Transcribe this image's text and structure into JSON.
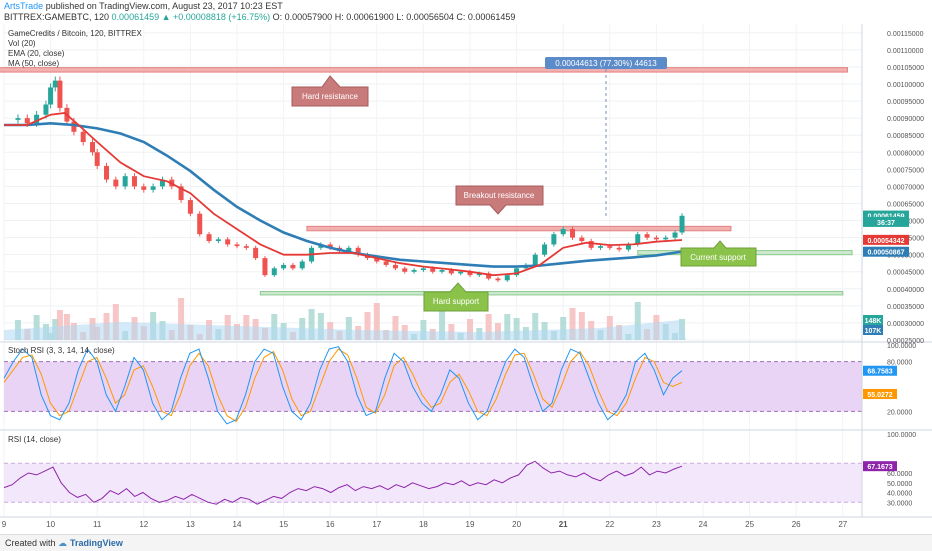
{
  "header": {
    "author": "ArtsTrade",
    "published": "published on TradingView.com, August 23, 2017 10:23 EST",
    "symbol": "BITTREX:GAMEBTC, 120",
    "last": "0.00061459",
    "change": "▲ +0.00008818 (+16.75%)",
    "ohlc": {
      "o": "O: 0.00057900",
      "h": "H: 0.00061900",
      "l": "L: 0.00056504",
      "c": "C: 0.00061459"
    }
  },
  "legend": {
    "line1": "GameCredits / Bitcoin, 120, BITTREX",
    "line2": "Vol (20)",
    "line3": "EMA (20, close)",
    "line4": "MA (50, close)"
  },
  "panes": {
    "stoch_title": "Stoch RSI (3, 3, 14, 14, close)",
    "rsi_title": "RSI (14, close)"
  },
  "annotations": {
    "measure": "0.00044613 (77.30%) 44613",
    "hard_resistance": "Hard resistance",
    "breakout_resistance": "Breakout resistance",
    "current_support": "Current support",
    "hard_support": "Hard support"
  },
  "footer": {
    "created": "Created with",
    "brand": "TradingView"
  },
  "colors": {
    "up": "#26a69a",
    "down": "#ef5350",
    "ema": "#e53935",
    "ma": "#2e7db5",
    "resistance": "#e57373",
    "support": "#81c784",
    "stoch_bg": "#e6ccf5",
    "rsi_bg": "#f2e6fb",
    "rsi_line": "#8e24aa",
    "stoch_k": "#2196f3",
    "stoch_d": "#ff9800",
    "measure": "#5b8bc9"
  },
  "chart_data": {
    "type": "candlestick",
    "price_axis": {
      "ticks": [
        "0.00115000",
        "0.00110000",
        "0.00105000",
        "0.00100000",
        "0.00095000",
        "0.00090000",
        "0.00085000",
        "0.00080000",
        "0.00075000",
        "0.00070000",
        "0.00065000",
        "0.00060000",
        "0.00055000",
        "0.00050000",
        "0.00045000",
        "0.00040000",
        "0.00035000",
        "0.00030000",
        "0.00025000"
      ],
      "range": [
        0.00025,
        0.00117
      ]
    },
    "x_axis": {
      "labels": [
        "9",
        "10",
        "11",
        "12",
        "13",
        "14",
        "15",
        "16",
        "17",
        "18",
        "19",
        "20",
        "21",
        "22",
        "23",
        "24",
        "25",
        "26",
        "27"
      ],
      "bold_labels": [
        "21"
      ]
    },
    "price_labels": [
      {
        "text": "0.00061459",
        "value": 0.00061459,
        "color": "#26a69a"
      },
      {
        "text": "36:37",
        "value": 0.000596,
        "color": "#26a69a"
      },
      {
        "text": "0.00054342",
        "value": 0.00054342,
        "color": "#e53935"
      },
      {
        "text": "0.00050867",
        "value": 0.00050867,
        "color": "#2e7db5"
      }
    ],
    "volume_labels": [
      {
        "text": "148K",
        "color": "#26a69a"
      },
      {
        "text": "107K",
        "color": "#2e7db5"
      }
    ],
    "zones": [
      {
        "name": "hard-resistance",
        "from": 0.001035,
        "to": 0.001048,
        "x0": 1,
        "x1": 27.1
      },
      {
        "name": "breakout-resistance",
        "from": 0.00057,
        "to": 0.000583,
        "x0": 15.5,
        "x1": 24.6
      },
      {
        "name": "current-support",
        "from": 0.0005,
        "to": 0.000512,
        "x0": 22.6,
        "x1": 27.2
      },
      {
        "name": "hard-support",
        "from": 0.000382,
        "to": 0.000392,
        "x0": 14.5,
        "x1": 27.0
      }
    ],
    "close_path": [
      [
        9.0,
        0.000895
      ],
      [
        9.3,
        0.0009
      ],
      [
        9.5,
        0.000885
      ],
      [
        9.7,
        0.00091
      ],
      [
        9.9,
        0.00094
      ],
      [
        10.0,
        0.00099
      ],
      [
        10.1,
        0.00101
      ],
      [
        10.2,
        0.00093
      ],
      [
        10.35,
        0.00089
      ],
      [
        10.5,
        0.00086
      ],
      [
        10.7,
        0.00083
      ],
      [
        10.9,
        0.0008
      ],
      [
        11.0,
        0.00076
      ],
      [
        11.2,
        0.00072
      ],
      [
        11.4,
        0.0007
      ],
      [
        11.6,
        0.00073
      ],
      [
        11.8,
        0.0007
      ],
      [
        12.0,
        0.00069
      ],
      [
        12.2,
        0.0007
      ],
      [
        12.4,
        0.00072
      ],
      [
        12.6,
        0.0007
      ],
      [
        12.8,
        0.00066
      ],
      [
        13.0,
        0.00062
      ],
      [
        13.2,
        0.00056
      ],
      [
        13.4,
        0.00054
      ],
      [
        13.6,
        0.000545
      ],
      [
        13.8,
        0.00053
      ],
      [
        14.0,
        0.000525
      ],
      [
        14.2,
        0.00052
      ],
      [
        14.4,
        0.00049
      ],
      [
        14.6,
        0.00044
      ],
      [
        14.8,
        0.00046
      ],
      [
        15.0,
        0.00047
      ],
      [
        15.2,
        0.00046
      ],
      [
        15.4,
        0.00048
      ],
      [
        15.6,
        0.00052
      ],
      [
        15.8,
        0.00053
      ],
      [
        16.0,
        0.00052
      ],
      [
        16.2,
        0.00051
      ],
      [
        16.4,
        0.00052
      ],
      [
        16.6,
        0.0005
      ],
      [
        16.8,
        0.00049
      ],
      [
        17.0,
        0.00048
      ],
      [
        17.2,
        0.00047
      ],
      [
        17.4,
        0.00046
      ],
      [
        17.6,
        0.00045
      ],
      [
        17.8,
        0.000455
      ],
      [
        18.0,
        0.00046
      ],
      [
        18.2,
        0.00045
      ],
      [
        18.4,
        0.000455
      ],
      [
        18.6,
        0.000445
      ],
      [
        18.8,
        0.00045
      ],
      [
        19.0,
        0.00044
      ],
      [
        19.2,
        0.000445
      ],
      [
        19.4,
        0.00043
      ],
      [
        19.6,
        0.000425
      ],
      [
        19.8,
        0.00044
      ],
      [
        20.0,
        0.00046
      ],
      [
        20.2,
        0.00047
      ],
      [
        20.4,
        0.0005
      ],
      [
        20.6,
        0.00053
      ],
      [
        20.8,
        0.00056
      ],
      [
        21.0,
        0.000575
      ],
      [
        21.2,
        0.00055
      ],
      [
        21.4,
        0.00054
      ],
      [
        21.6,
        0.00052
      ],
      [
        21.8,
        0.000525
      ],
      [
        22.0,
        0.00052
      ],
      [
        22.2,
        0.000515
      ],
      [
        22.4,
        0.00053
      ],
      [
        22.6,
        0.00056
      ],
      [
        22.8,
        0.00055
      ],
      [
        23.0,
        0.000545
      ],
      [
        23.2,
        0.00055
      ],
      [
        23.4,
        0.000565
      ],
      [
        23.55,
        0.000614
      ]
    ],
    "ema_20": [
      [
        9.0,
        0.00088
      ],
      [
        9.5,
        0.00088
      ],
      [
        10.0,
        0.00091
      ],
      [
        10.3,
        0.000915
      ],
      [
        10.6,
        0.00088
      ],
      [
        11.0,
        0.00083
      ],
      [
        11.5,
        0.00077
      ],
      [
        12.0,
        0.00073
      ],
      [
        12.5,
        0.000715
      ],
      [
        13.0,
        0.00068
      ],
      [
        13.5,
        0.00062
      ],
      [
        14.0,
        0.000575
      ],
      [
        14.5,
        0.00053
      ],
      [
        15.0,
        0.0005
      ],
      [
        15.5,
        0.0005
      ],
      [
        16.0,
        0.000505
      ],
      [
        16.5,
        0.000505
      ],
      [
        17.0,
        0.00049
      ],
      [
        17.5,
        0.000475
      ],
      [
        18.0,
        0.000465
      ],
      [
        18.5,
        0.000458
      ],
      [
        19.0,
        0.00045
      ],
      [
        19.5,
        0.00044
      ],
      [
        20.0,
        0.000445
      ],
      [
        20.5,
        0.00047
      ],
      [
        21.0,
        0.00052
      ],
      [
        21.5,
        0.000535
      ],
      [
        22.0,
        0.000528
      ],
      [
        22.5,
        0.00053
      ],
      [
        23.0,
        0.000538
      ],
      [
        23.55,
        0.000543
      ]
    ],
    "ma_50": [
      [
        9.0,
        0.00088
      ],
      [
        9.5,
        0.00088
      ],
      [
        10.0,
        0.000885
      ],
      [
        10.5,
        0.00088
      ],
      [
        11.0,
        0.00087
      ],
      [
        11.5,
        0.000855
      ],
      [
        12.0,
        0.00083
      ],
      [
        12.5,
        0.00079
      ],
      [
        13.0,
        0.000745
      ],
      [
        13.5,
        0.00069
      ],
      [
        14.0,
        0.00064
      ],
      [
        14.5,
        0.0006
      ],
      [
        15.0,
        0.000565
      ],
      [
        15.5,
        0.00054
      ],
      [
        16.0,
        0.00052
      ],
      [
        16.5,
        0.000505
      ],
      [
        17.0,
        0.000495
      ],
      [
        17.5,
        0.000485
      ],
      [
        18.0,
        0.00048
      ],
      [
        18.5,
        0.000475
      ],
      [
        19.0,
        0.00047
      ],
      [
        19.5,
        0.000465
      ],
      [
        20.0,
        0.000465
      ],
      [
        20.5,
        0.000468
      ],
      [
        21.0,
        0.000475
      ],
      [
        21.5,
        0.000482
      ],
      [
        22.0,
        0.000487
      ],
      [
        22.5,
        0.000492
      ],
      [
        23.0,
        0.000498
      ],
      [
        23.55,
        0.000509
      ]
    ],
    "stoch_rsi": {
      "range": [
        0,
        100
      ],
      "ticks": [
        "100.0000",
        "80.0000",
        "20.0000"
      ],
      "band": [
        20,
        80
      ],
      "k_label": "68.7583",
      "d_label": "55.0272",
      "k": [
        60,
        80,
        95,
        85,
        40,
        15,
        10,
        30,
        70,
        95,
        80,
        40,
        20,
        50,
        85,
        70,
        30,
        10,
        20,
        60,
        90,
        95,
        60,
        20,
        5,
        10,
        40,
        80,
        95,
        90,
        50,
        20,
        10,
        30,
        70,
        95,
        98,
        80,
        40,
        15,
        20,
        60,
        90,
        80,
        50,
        30,
        20,
        40,
        70,
        60,
        30,
        10,
        20,
        50,
        80,
        95,
        85,
        50,
        20,
        30,
        70,
        95,
        90,
        60,
        30,
        10,
        20,
        40,
        80,
        90,
        70,
        40,
        60,
        69
      ],
      "d": [
        55,
        70,
        85,
        88,
        65,
        30,
        15,
        20,
        50,
        80,
        85,
        60,
        30,
        40,
        70,
        75,
        50,
        20,
        15,
        40,
        75,
        90,
        75,
        40,
        15,
        8,
        25,
        60,
        85,
        92,
        70,
        35,
        15,
        20,
        50,
        80,
        95,
        88,
        60,
        25,
        18,
        40,
        75,
        85,
        65,
        40,
        25,
        30,
        55,
        65,
        45,
        20,
        15,
        35,
        65,
        88,
        90,
        65,
        35,
        25,
        50,
        80,
        92,
        75,
        45,
        20,
        15,
        30,
        60,
        85,
        80,
        55,
        50,
        55
      ]
    },
    "rsi_14": {
      "range": [
        20,
        100
      ],
      "ticks": [
        "100.0000",
        "60.0000",
        "50.0000",
        "40.0000",
        "30.0000"
      ],
      "value_label": "67.1673",
      "band": [
        30,
        70
      ],
      "values": [
        45,
        48,
        55,
        60,
        58,
        62,
        66,
        50,
        40,
        35,
        38,
        30,
        34,
        42,
        38,
        44,
        36,
        40,
        34,
        30,
        32,
        36,
        33,
        38,
        34,
        30,
        28,
        33,
        30,
        35,
        33,
        28,
        32,
        36,
        34,
        40,
        44,
        42,
        46,
        44,
        40,
        45,
        48,
        42,
        46,
        44,
        47,
        43,
        48,
        45,
        50,
        47,
        44,
        46,
        50,
        48,
        52,
        47,
        50,
        48,
        53,
        50,
        55,
        58,
        68,
        72,
        65,
        60,
        62,
        58,
        56,
        60,
        55,
        52,
        58,
        62,
        57,
        60,
        66,
        58,
        62,
        60,
        64,
        67
      ]
    }
  }
}
